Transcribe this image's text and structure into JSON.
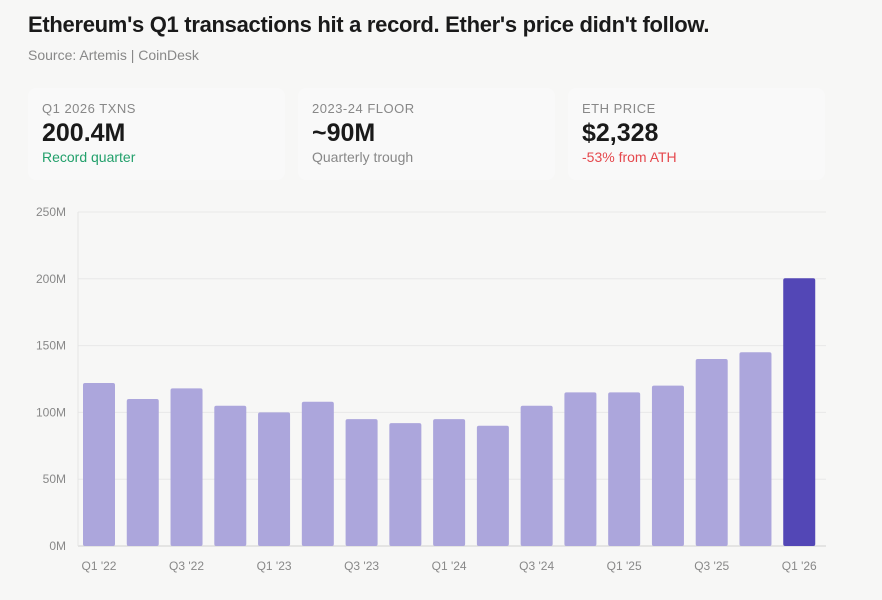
{
  "header": {
    "title": "Ethereum's Q1 transactions hit a record. Ether's price didn't follow.",
    "source": "Source: Artemis | CoinDesk"
  },
  "cards": [
    {
      "label": "Q1 2026 TXNS",
      "value": "200.4M",
      "sub": "Record quarter",
      "sub_color": "#22a06b"
    },
    {
      "label": "2023-24 FLOOR",
      "value": "~90M",
      "sub": "Quarterly trough",
      "sub_color": "#888888"
    },
    {
      "label": "ETH PRICE",
      "value": "$2,328",
      "sub": "-53% from ATH",
      "sub_color": "#e5484d"
    }
  ],
  "chart_data": {
    "type": "bar",
    "categories": [
      "Q1 '22",
      "Q2 '22",
      "Q3 '22",
      "Q4 '22",
      "Q1 '23",
      "Q2 '23",
      "Q3 '23",
      "Q4 '23",
      "Q1 '24",
      "Q2 '24",
      "Q3 '24",
      "Q4 '24",
      "Q1 '25",
      "Q2 '25",
      "Q3 '25",
      "Q4 '25",
      "Q1 '26"
    ],
    "x_tick_labels": [
      "Q1 '22",
      "Q3 '22",
      "Q1 '23",
      "Q3 '23",
      "Q1 '24",
      "Q3 '24",
      "Q1 '25",
      "Q3 '25",
      "Q1 '26"
    ],
    "values": [
      122,
      110,
      118,
      105,
      100,
      108,
      95,
      92,
      95,
      90,
      105,
      115,
      115,
      120,
      140,
      145,
      200.4
    ],
    "unit": "M",
    "ylim": [
      0,
      250
    ],
    "y_ticks": [
      "0M",
      "50M",
      "100M",
      "150M",
      "200M",
      "250M"
    ],
    "grid": true,
    "colors": {
      "default": "#aca6dc",
      "highlight": "#5347b6"
    },
    "highlight_index": 16
  }
}
